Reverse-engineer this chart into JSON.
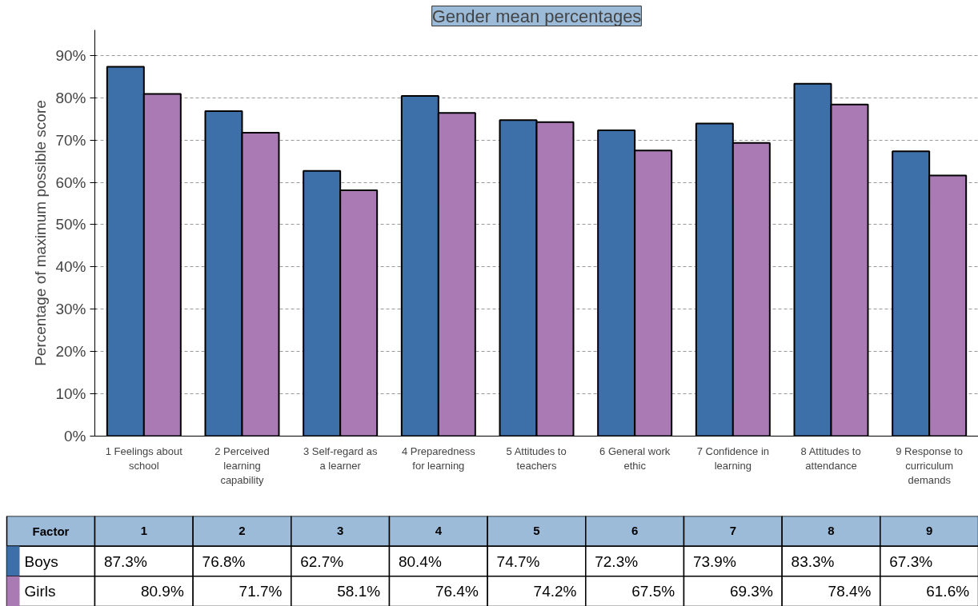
{
  "chart_data": {
    "type": "bar",
    "title": "Gender mean percentages",
    "ylabel": "Percentage of maximum possible score",
    "categories": [
      "1 Feelings about school",
      "2 Perceived learning capability",
      "3 Self-regard as a learner",
      "4 Preparedness for learning",
      "5 Attitudes to teachers",
      "6 General work ethic",
      "7 Confidence in learning",
      "8 Attitudes to attendance",
      "9 Response to curriculum demands"
    ],
    "series": [
      {
        "name": "Boys",
        "color": "#3d6fa8",
        "values": [
          87.3,
          76.8,
          62.7,
          80.4,
          74.7,
          72.3,
          73.9,
          83.3,
          67.3
        ],
        "value_labels": [
          "87.3%",
          "76.8%",
          "62.7%",
          "80.4%",
          "74.7%",
          "72.3%",
          "73.9%",
          "83.3%",
          "67.3%"
        ]
      },
      {
        "name": "Girls",
        "color": "#a97ab4",
        "values": [
          80.9,
          71.7,
          58.1,
          76.4,
          74.2,
          67.5,
          69.3,
          78.4,
          61.6
        ],
        "value_labels": [
          "80.9%",
          "71.7%",
          "58.1%",
          "76.4%",
          "74.2%",
          "67.5%",
          "69.3%",
          "78.4%",
          "61.6%"
        ]
      }
    ],
    "ylim": [
      0,
      96
    ],
    "yticks": [
      {
        "value": 0,
        "label": "0%"
      },
      {
        "value": 10,
        "label": "10%"
      },
      {
        "value": 20,
        "label": "20%"
      },
      {
        "value": 30,
        "label": "30%"
      },
      {
        "value": 40,
        "label": "40%"
      },
      {
        "value": 50,
        "label": "50%"
      },
      {
        "value": 60,
        "label": "60%"
      },
      {
        "value": 70,
        "label": "70%"
      },
      {
        "value": 80,
        "label": "80%"
      },
      {
        "value": 90,
        "label": "90%"
      }
    ],
    "grid": "y",
    "legend": "bottom",
    "annotations": [
      "Factor",
      "1",
      "2",
      "3",
      "4",
      "5",
      "6",
      "7",
      "8",
      "9"
    ]
  }
}
